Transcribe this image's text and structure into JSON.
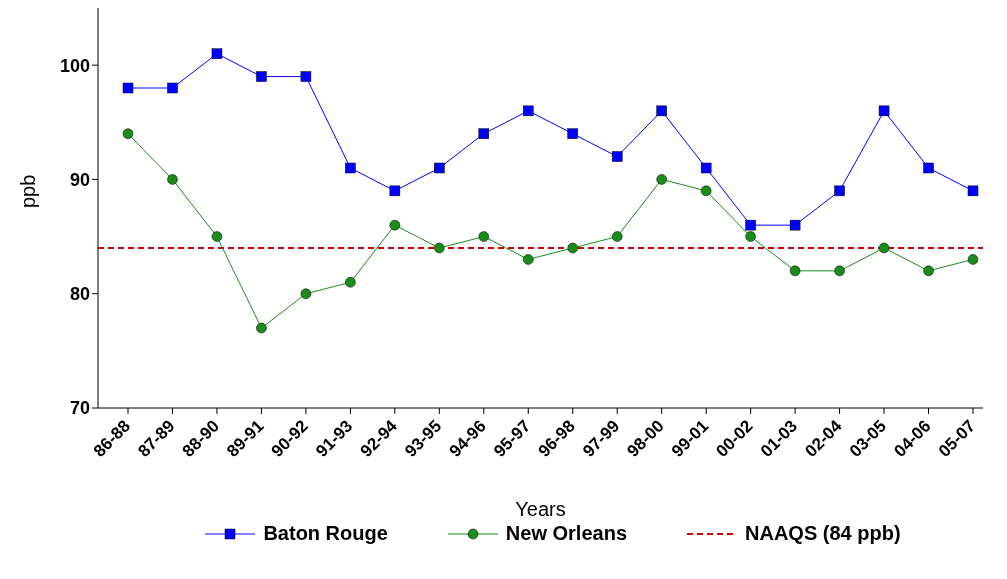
{
  "chart_data": {
    "type": "line",
    "xlabel": "Years",
    "ylabel": "ppb",
    "categories": [
      "86-88",
      "87-89",
      "88-90",
      "89-91",
      "90-92",
      "91-93",
      "92-94",
      "93-95",
      "94-96",
      "95-97",
      "96-98",
      "97-99",
      "98-00",
      "99-01",
      "00-02",
      "01-03",
      "02-04",
      "03-05",
      "04-06",
      "05-07"
    ],
    "series": [
      {
        "name": "Baton Rouge",
        "color": "#0000ff",
        "marker": "square",
        "values": [
          98,
          98,
          101,
          99,
          99,
          91,
          89,
          91,
          94,
          96,
          94,
          92,
          96,
          91,
          86,
          86,
          89,
          96,
          91,
          89
        ]
      },
      {
        "name": "New Orleans",
        "color": "#1a8c1a",
        "marker": "circle",
        "values": [
          94,
          90,
          85,
          77,
          80,
          81,
          86,
          84,
          85,
          83,
          84,
          85,
          90,
          89,
          85,
          82,
          82,
          84,
          82,
          83
        ]
      }
    ],
    "ref_lines": [
      {
        "axis": "y",
        "value": 84,
        "label": "NAAQS (84 ppb)",
        "color": "#cc0000",
        "line_style": "dashed"
      }
    ],
    "ylim": [
      70,
      105
    ],
    "yticks": [
      70,
      80,
      90,
      100
    ],
    "grid": false,
    "legend": "bottom",
    "line_style": "solid"
  }
}
